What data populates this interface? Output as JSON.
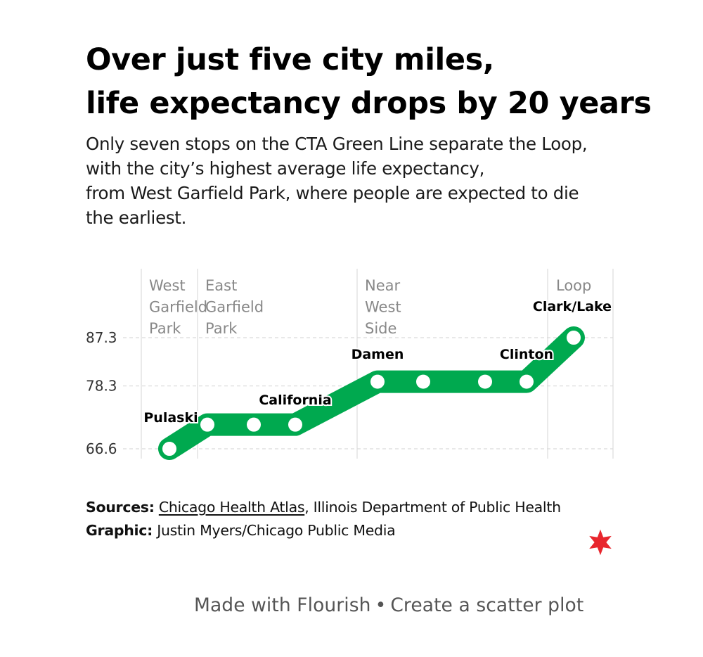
{
  "header": {
    "title_lines": [
      "Over just five city miles,",
      "life expectancy drops by 20 years"
    ],
    "subtitle_lines": [
      "Only seven stops on the CTA Green Line separate the Loop,",
      "with the city’s highest average life expectancy,",
      "from West Garfield Park, where people are expected to die",
      "the earliest."
    ]
  },
  "chart_data": {
    "type": "line",
    "yaxis": {
      "ticks": [
        66.6,
        78.3,
        87.3
      ],
      "range": [
        65.5,
        89.5
      ]
    },
    "grid": true,
    "line_color": "#00a94f",
    "neighborhoods": [
      {
        "lines": [
          "West",
          "Garfield",
          "Park"
        ]
      },
      {
        "lines": [
          "East",
          "Garfield",
          "Park"
        ]
      },
      {
        "lines": [
          "Near",
          "West",
          "Side"
        ]
      },
      {
        "lines": [
          "Loop"
        ]
      }
    ],
    "stations": [
      {
        "x": 0,
        "y": 66.6,
        "label": "Pulaski"
      },
      {
        "x": 1,
        "y": 71.1
      },
      {
        "x": 2,
        "y": 71.1
      },
      {
        "x": 3,
        "y": 71.1,
        "label": "California"
      },
      {
        "x": 4,
        "y": 79.1,
        "label": "Damen"
      },
      {
        "x": 5,
        "y": 79.1
      },
      {
        "x": 6,
        "y": 79.1
      },
      {
        "x": 7,
        "y": 79.1,
        "label": "Clinton"
      },
      {
        "x": 8,
        "y": 87.3,
        "label": "Clark/Lake"
      }
    ]
  },
  "footer": {
    "sources_label": "Sources:",
    "sources_link": "Chicago Health Atlas",
    "sources_rest": ", Illinois Department of Public Health",
    "graphic_label": "Graphic:",
    "graphic_text": "Justin Myers/Chicago Public Media"
  },
  "branding": {
    "star_color": "#e8262d",
    "made_with": "Made with Flourish",
    "separator": "•",
    "create_link": "Create a scatter plot"
  }
}
